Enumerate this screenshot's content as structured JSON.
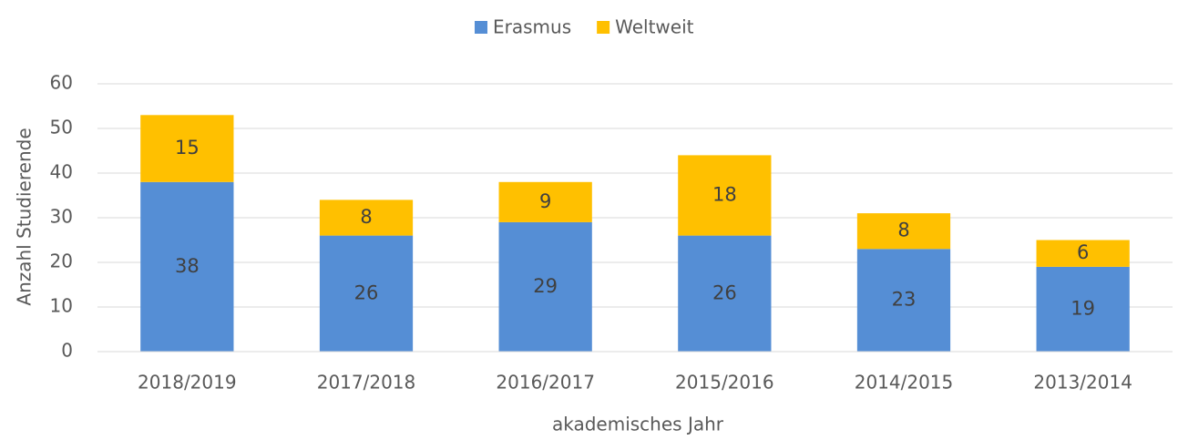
{
  "chart_data": {
    "type": "stacked_bar",
    "x_label": "akademisches Jahr",
    "y_label": "Anzahl Studierende",
    "categories": [
      "2018/2019",
      "2017/2018",
      "2016/2017",
      "2015/2016",
      "2014/2015",
      "2013/2014"
    ],
    "series": [
      {
        "name": "Erasmus",
        "color": "#558ed5",
        "values": [
          38,
          26,
          29,
          26,
          23,
          19
        ]
      },
      {
        "name": "Weltweit",
        "color": "#ffc000",
        "values": [
          15,
          8,
          9,
          18,
          8,
          6
        ]
      }
    ],
    "ylim": [
      0,
      60
    ],
    "yticks": [
      0,
      10,
      20,
      30,
      40,
      50,
      60
    ],
    "grid": true,
    "legend": "top"
  }
}
